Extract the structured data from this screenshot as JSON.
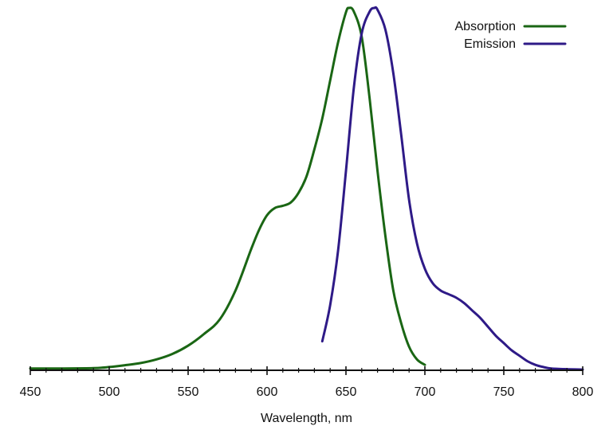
{
  "chart_data": {
    "type": "line",
    "title": "",
    "xlabel": "Wavelength, nm",
    "ylabel": "",
    "xlim": [
      450,
      800
    ],
    "ylim": [
      0,
      1
    ],
    "x_ticks": [
      450,
      500,
      550,
      600,
      650,
      700,
      750,
      800
    ],
    "x_minor_step": 10,
    "grid": false,
    "legend": "top-right",
    "series": [
      {
        "name": "Absorption",
        "color": "#1a6614",
        "points": [
          [
            450,
            0.005
          ],
          [
            470,
            0.005
          ],
          [
            490,
            0.006
          ],
          [
            500,
            0.009
          ],
          [
            510,
            0.014
          ],
          [
            520,
            0.02
          ],
          [
            530,
            0.03
          ],
          [
            540,
            0.045
          ],
          [
            550,
            0.068
          ],
          [
            560,
            0.1
          ],
          [
            570,
            0.14
          ],
          [
            580,
            0.22
          ],
          [
            590,
            0.335
          ],
          [
            595,
            0.388
          ],
          [
            600,
            0.428
          ],
          [
            605,
            0.448
          ],
          [
            610,
            0.454
          ],
          [
            615,
            0.463
          ],
          [
            620,
            0.49
          ],
          [
            625,
            0.535
          ],
          [
            630,
            0.61
          ],
          [
            635,
            0.695
          ],
          [
            640,
            0.8
          ],
          [
            645,
            0.905
          ],
          [
            650,
            0.988
          ],
          [
            652,
            1.0
          ],
          [
            655,
            0.99
          ],
          [
            660,
            0.92
          ],
          [
            665,
            0.75
          ],
          [
            670,
            0.55
          ],
          [
            675,
            0.37
          ],
          [
            680,
            0.22
          ],
          [
            685,
            0.13
          ],
          [
            690,
            0.065
          ],
          [
            695,
            0.03
          ],
          [
            700,
            0.015
          ]
        ]
      },
      {
        "name": "Emission",
        "color": "#2e1a87",
        "points": [
          [
            635,
            0.08
          ],
          [
            640,
            0.18
          ],
          [
            645,
            0.33
          ],
          [
            650,
            0.55
          ],
          [
            655,
            0.78
          ],
          [
            660,
            0.93
          ],
          [
            665,
            0.99
          ],
          [
            668,
            1.0
          ],
          [
            670,
            0.995
          ],
          [
            675,
            0.94
          ],
          [
            680,
            0.82
          ],
          [
            685,
            0.65
          ],
          [
            690,
            0.47
          ],
          [
            695,
            0.35
          ],
          [
            700,
            0.28
          ],
          [
            705,
            0.24
          ],
          [
            710,
            0.22
          ],
          [
            715,
            0.21
          ],
          [
            720,
            0.2
          ],
          [
            725,
            0.185
          ],
          [
            730,
            0.165
          ],
          [
            735,
            0.145
          ],
          [
            740,
            0.12
          ],
          [
            745,
            0.095
          ],
          [
            750,
            0.075
          ],
          [
            755,
            0.055
          ],
          [
            760,
            0.04
          ],
          [
            765,
            0.025
          ],
          [
            770,
            0.015
          ],
          [
            775,
            0.009
          ],
          [
            780,
            0.005
          ],
          [
            790,
            0.003
          ],
          [
            800,
            0.002
          ]
        ]
      }
    ]
  }
}
